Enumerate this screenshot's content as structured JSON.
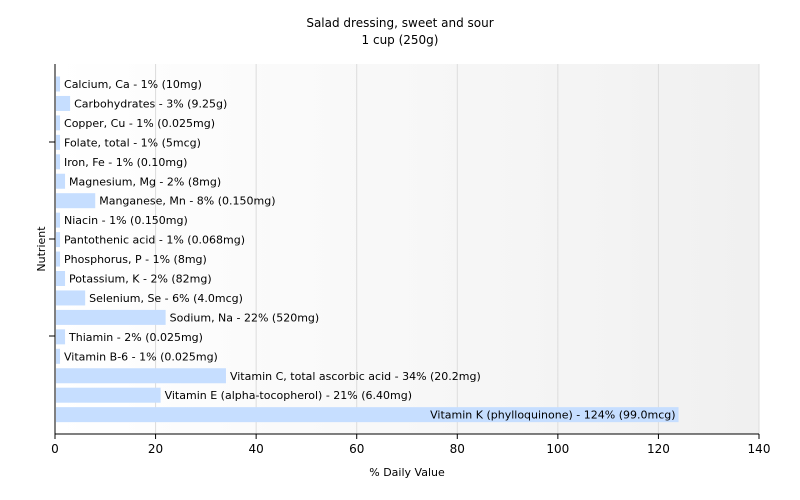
{
  "chart_data": {
    "type": "bar",
    "orientation": "horizontal",
    "title": "Salad dressing, sweet and sour",
    "subtitle": "1 cup (250g)",
    "xlabel": "% Daily Value",
    "ylabel": "Nutrient",
    "xlim": [
      0,
      140
    ],
    "xticks": [
      0,
      20,
      40,
      60,
      80,
      100,
      120,
      140
    ],
    "grid": true,
    "bar_color": "#c6deff",
    "categories": [
      "Calcium, Ca",
      "Carbohydrates",
      "Copper, Cu",
      "Folate, total",
      "Iron, Fe",
      "Magnesium, Mg",
      "Manganese, Mn",
      "Niacin",
      "Pantothenic acid",
      "Phosphorus, P",
      "Potassium, K",
      "Selenium, Se",
      "Sodium, Na",
      "Thiamin",
      "Vitamin B-6",
      "Vitamin C, total ascorbic acid",
      "Vitamin E (alpha-tocopherol)",
      "Vitamin K (phylloquinone)"
    ],
    "values": [
      1,
      3,
      1,
      1,
      1,
      2,
      8,
      1,
      1,
      1,
      2,
      6,
      22,
      2,
      1,
      34,
      21,
      124
    ],
    "labels": [
      "Calcium, Ca - 1% (10mg)",
      "Carbohydrates - 3% (9.25g)",
      "Copper, Cu - 1% (0.025mg)",
      "Folate, total - 1% (5mcg)",
      "Iron, Fe - 1% (0.10mg)",
      "Magnesium, Mg - 2% (8mg)",
      "Manganese, Mn - 8% (0.150mg)",
      "Niacin - 1% (0.150mg)",
      "Pantothenic acid - 1% (0.068mg)",
      "Phosphorus, P - 1% (8mg)",
      "Potassium, K - 2% (82mg)",
      "Selenium, Se - 6% (4.0mcg)",
      "Sodium, Na - 22% (520mg)",
      "Thiamin - 2% (0.025mg)",
      "Vitamin B-6 - 1% (0.025mg)",
      "Vitamin C, total ascorbic acid - 34% (20.2mg)",
      "Vitamin E (alpha-tocopherol) - 21% (6.40mg)",
      "Vitamin K (phylloquinone) - 124% (99.0mcg)"
    ]
  }
}
